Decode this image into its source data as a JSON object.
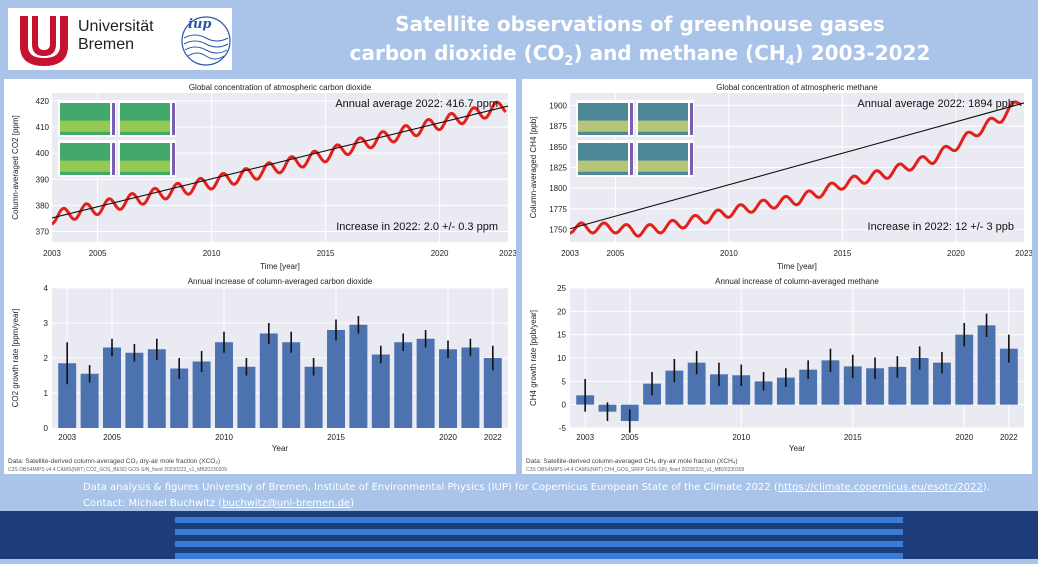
{
  "header": {
    "university_name_1": "Universität",
    "university_name_2": "Bremen",
    "iup_logo_text": "iup",
    "title_line1": "Satellite observations of greenhouse gases",
    "title_line2_a": "carbon dioxide (CO",
    "title_line2_sub1": "2",
    "title_line2_b": ") and methane (CH",
    "title_line2_sub2": "4",
    "title_line2_c": ") 2003-2022"
  },
  "footer": {
    "line1_a": "Data analysis & figures University of Bremen, Institute of Environmental Physics (IUP) for Copernicus European State of the Climate 2022 (",
    "line1_link": "https://climate.copernicus.eu/esotc/2022",
    "line1_b": ").",
    "line2_a": "Contact: Michael Buchwitz (",
    "line2_link": "buchwitz@uni-bremen.de",
    "line2_b": ")"
  },
  "colors": {
    "background": "#a9c4e8",
    "plot_bg": "#eaeaf2",
    "bar": "#4c72b0",
    "trend_line": "#e3201b",
    "band": "#1c3d7a",
    "stripe": "#3a7bd5"
  },
  "chart_data": [
    {
      "id": "co2_conc",
      "type": "line",
      "title": "Global concentration of atmospheric carbon dioxide",
      "xlabel": "Time [year]",
      "ylabel": "Column-averaged CO2 [ppm]",
      "xlim": [
        2003,
        2023
      ],
      "ylim": [
        366,
        423
      ],
      "xticks": [
        2003,
        2005,
        2010,
        2015,
        2020,
        2023
      ],
      "yticks": [
        370,
        380,
        390,
        400,
        410,
        420
      ],
      "annotation_top": "Annual average 2022: 416.7 ppm",
      "annotation_bottom": "Increase in 2022: 2.0 +/- 0.3 ppm",
      "trend": {
        "x": [
          2003,
          2023
        ],
        "y": [
          375.2,
          418.0
        ]
      },
      "seasonal_amplitude": 2.5,
      "series": [
        {
          "values_note": "",
          "x": [
            2003.0,
            2004.0,
            2005.0,
            2006.0,
            2007.0,
            2008.0,
            2009.0,
            2010.0,
            2011.0,
            2012.0,
            2013.0,
            2014.0,
            2015.0,
            2016.0,
            2017.0,
            2018.0,
            2019.0,
            2020.0,
            2021.0,
            2022.0,
            2022.9
          ],
          "y": [
            375.5,
            377.2,
            379.0,
            381.0,
            383.0,
            385.0,
            386.8,
            388.8,
            390.6,
            392.5,
            395.0,
            397.2,
            399.2,
            402.0,
            404.6,
            406.8,
            409.2,
            411.5,
            413.8,
            415.9,
            417.8
          ]
        }
      ]
    },
    {
      "id": "co2_growth",
      "type": "bar",
      "title": "Annual increase of column-averaged carbon dioxide",
      "xlabel": "Year",
      "ylabel": "CO2 growth rate [ppm/year]",
      "ylim": [
        0,
        4
      ],
      "yticks": [
        0,
        1,
        2,
        3,
        4
      ],
      "xticks": [
        2003,
        2005,
        2010,
        2015,
        2020,
        2022
      ],
      "categories": [
        2003,
        2004,
        2005,
        2006,
        2007,
        2008,
        2009,
        2010,
        2011,
        2012,
        2013,
        2014,
        2015,
        2016,
        2017,
        2018,
        2019,
        2020,
        2021,
        2022
      ],
      "values": [
        1.85,
        1.55,
        2.3,
        2.15,
        2.25,
        1.7,
        1.9,
        2.45,
        1.75,
        2.7,
        2.45,
        1.75,
        2.8,
        2.95,
        2.1,
        2.45,
        2.55,
        2.25,
        2.3,
        2.0
      ],
      "errors": [
        0.6,
        0.25,
        0.25,
        0.25,
        0.3,
        0.3,
        0.3,
        0.3,
        0.25,
        0.3,
        0.3,
        0.25,
        0.3,
        0.25,
        0.25,
        0.25,
        0.25,
        0.25,
        0.25,
        0.35
      ],
      "source_line1": "Data: Satellite-derived column-averaged CO₂ dry-air mole fraction (XCO₂)",
      "source_line2": "C3S OBS4MIPS v4.4 CAMS(NRT) CO2_GOS_BESD GOS-SIN_fixed 20230223_v1_MB20230309"
    },
    {
      "id": "ch4_conc",
      "type": "line",
      "title": "Global concentration of atmospheric methane",
      "xlabel": "Time [year]",
      "ylabel": "Column-averaged CH4 [ppb]",
      "xlim": [
        2003,
        2023
      ],
      "ylim": [
        1735,
        1915
      ],
      "xticks": [
        2003,
        2005,
        2010,
        2015,
        2020,
        2023
      ],
      "yticks": [
        1750,
        1775,
        1800,
        1825,
        1850,
        1875,
        1900
      ],
      "annotation_top": "Annual average 2022: 1894 ppb",
      "annotation_bottom": "Increase in 2022: 12 +/- 3 ppb",
      "trend": {
        "x": [
          2003,
          2023
        ],
        "y": [
          1751,
          1903
        ]
      },
      "seasonal_amplitude": 6,
      "series": [
        {
          "values_note": "",
          "x": [
            2003.0,
            2004.0,
            2005.0,
            2006.0,
            2007.0,
            2008.0,
            2009.0,
            2010.0,
            2011.0,
            2012.0,
            2013.0,
            2014.0,
            2015.0,
            2016.0,
            2017.0,
            2018.0,
            2019.0,
            2020.0,
            2021.0,
            2022.0,
            2022.9
          ],
          "y": [
            1752,
            1752,
            1752,
            1748,
            1752,
            1758,
            1764,
            1771,
            1777,
            1782,
            1786,
            1795,
            1805,
            1812,
            1818,
            1828,
            1836,
            1852,
            1870,
            1886,
            1906
          ]
        }
      ]
    },
    {
      "id": "ch4_growth",
      "type": "bar",
      "title": "Annual increase of column-averaged methane",
      "xlabel": "Year",
      "ylabel": "CH4 growth rate [ppb/year]",
      "ylim": [
        -5,
        25
      ],
      "yticks": [
        -5,
        0,
        5,
        10,
        15,
        20,
        25
      ],
      "xticks": [
        2003,
        2005,
        2010,
        2015,
        2020,
        2022
      ],
      "categories": [
        2003,
        2004,
        2005,
        2006,
        2007,
        2008,
        2009,
        2010,
        2011,
        2012,
        2013,
        2014,
        2015,
        2016,
        2017,
        2018,
        2019,
        2020,
        2021,
        2022
      ],
      "values": [
        2.0,
        -1.5,
        -3.5,
        4.5,
        7.3,
        9.0,
        6.5,
        6.3,
        5.0,
        5.8,
        7.5,
        9.5,
        8.2,
        7.8,
        8.1,
        10.0,
        9.0,
        15.0,
        17.0,
        12.0
      ],
      "errors": [
        3.5,
        2.0,
        2.5,
        2.5,
        2.5,
        2.5,
        2.5,
        2.3,
        2.0,
        2.0,
        2.0,
        2.5,
        2.5,
        2.3,
        2.3,
        2.5,
        2.3,
        2.5,
        2.5,
        3.0
      ],
      "source_line1": "Data: Satellite-derived column-averaged CH₄ dry-air mole fraction (XCH₄)",
      "source_line2": "C3S OBS4MIPS v4.4 CAMS(NRT) CH4_GOS_SRFP GOS-SIN_fixed 20230223_v1_MB20230309"
    }
  ]
}
